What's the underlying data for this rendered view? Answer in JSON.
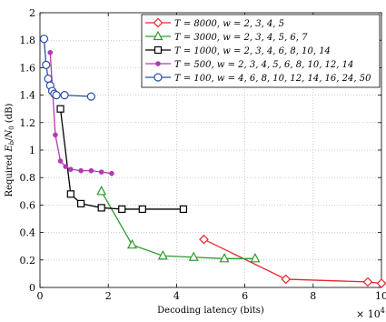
{
  "chart_data": {
    "type": "line",
    "xlabel": "Decoding latency (bits)",
    "ylabel": "Required E_b/N_0 (dB)",
    "ylabel_parts": {
      "pre": "Required ",
      "E": "E",
      "b": "b",
      "slash": "/",
      "N": "N",
      "zero": "0",
      "post": " (dB)"
    },
    "x_multiplier": {
      "base": "× 10",
      "exp": "4"
    },
    "xlim": [
      0,
      10
    ],
    "ylim": [
      0,
      2
    ],
    "xticks": [
      0,
      2,
      4,
      6,
      8,
      10
    ],
    "xtick_labels": [
      "0",
      "2",
      "4",
      "6",
      "8",
      "10"
    ],
    "yticks": [
      0,
      0.2,
      0.4,
      0.6,
      0.8,
      1.0,
      1.2,
      1.4,
      1.6,
      1.8,
      2.0
    ],
    "ytick_labels": [
      "0",
      "0.2",
      "0.4",
      "0.6",
      "0.8",
      "1",
      "1.2",
      "1.4",
      "1.6",
      "1.8",
      "2"
    ],
    "grid": true,
    "legend_position": "top-right",
    "series": [
      {
        "name": "T = 8000, w = 2, 3, 4, 5",
        "color": "#e8262a",
        "marker": "diamond",
        "x": [
          4.8,
          7.2,
          9.6,
          10.0
        ],
        "y": [
          0.35,
          0.06,
          0.04,
          0.03
        ]
      },
      {
        "name": "T = 3000, w = 2, 3, 4, 5, 6, 7",
        "color": "#2e9a2e",
        "marker": "triangle",
        "x": [
          1.8,
          2.7,
          3.6,
          4.5,
          5.4,
          6.3
        ],
        "y": [
          0.7,
          0.31,
          0.23,
          0.22,
          0.21,
          0.21
        ]
      },
      {
        "name": "T = 1000, w = 2, 3, 4, 6, 8, 10, 14",
        "color": "#000000",
        "marker": "square",
        "x": [
          0.6,
          0.9,
          1.2,
          1.8,
          2.4,
          3.0,
          4.2
        ],
        "y": [
          1.3,
          0.68,
          0.61,
          0.58,
          0.57,
          0.57,
          0.57
        ]
      },
      {
        "name": "T = 500, w = 2, 3, 4, 5, 6, 8, 10, 12, 14",
        "color": "#b13bb1",
        "marker": "dot",
        "x": [
          0.3,
          0.45,
          0.6,
          0.75,
          0.9,
          1.2,
          1.5,
          1.8,
          2.1
        ],
        "y": [
          1.71,
          1.11,
          0.92,
          0.88,
          0.86,
          0.85,
          0.85,
          0.84,
          0.83
        ]
      },
      {
        "name": "T = 100, w = 4, 6, 8, 10, 12, 14, 16, 24, 50",
        "color": "#2b4fa8",
        "marker": "circle",
        "x": [
          0.12,
          0.18,
          0.24,
          0.3,
          0.36,
          0.42,
          0.48,
          0.72,
          1.5
        ],
        "y": [
          1.81,
          1.62,
          1.52,
          1.47,
          1.43,
          1.41,
          1.4,
          1.4,
          1.39
        ]
      }
    ]
  }
}
